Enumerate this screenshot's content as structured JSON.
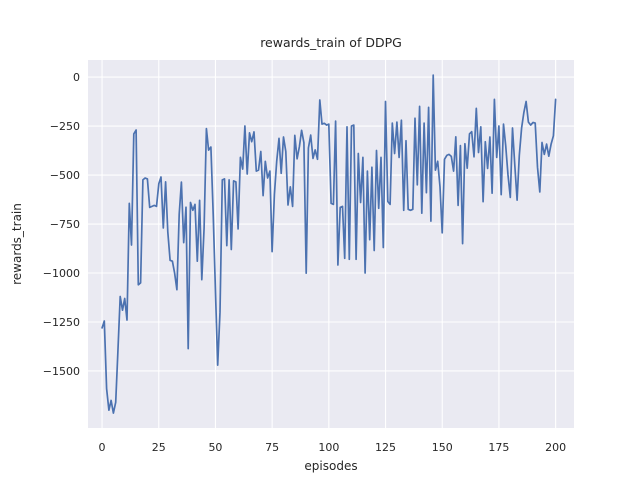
{
  "chart_data": {
    "type": "line",
    "title": "rewards_train of DDPG",
    "xlabel": "episodes",
    "ylabel": "rewards_train",
    "x": {
      "start": 0,
      "end": 200,
      "step": 1
    },
    "x_ticks": [
      0,
      25,
      50,
      75,
      100,
      125,
      150,
      175,
      200
    ],
    "y_ticks": [
      0,
      -250,
      -500,
      -750,
      -1000,
      -1250,
      -1500
    ],
    "xlim": [
      -6.2,
      208.1
    ],
    "ylim": [
      -1791,
      87
    ],
    "grid": true,
    "legend": null,
    "style": {
      "line_color": "#4c72b0",
      "line_width": 1.7,
      "axes_background": "#eaeaf2",
      "grid_color": "#ffffff",
      "text_color": "#262626",
      "figure_background": "#ffffff"
    },
    "series": [
      {
        "name": "rewards_train",
        "values": [
          -1280,
          -1245,
          -1590,
          -1700,
          -1650,
          -1715,
          -1660,
          -1400,
          -1120,
          -1190,
          -1130,
          -1240,
          -645,
          -857,
          -290,
          -270,
          -1060,
          -1050,
          -525,
          -515,
          -520,
          -665,
          -660,
          -655,
          -660,
          -545,
          -510,
          -770,
          -535,
          -790,
          -935,
          -940,
          -1000,
          -1085,
          -700,
          -536,
          -845,
          -664,
          -1386,
          -640,
          -680,
          -650,
          -940,
          -629,
          -1034,
          -770,
          -263,
          -373,
          -357,
          -700,
          -1100,
          -1470,
          -1200,
          -525,
          -520,
          -860,
          -525,
          -880,
          -530,
          -535,
          -775,
          -410,
          -470,
          -250,
          -495,
          -285,
          -330,
          -280,
          -480,
          -475,
          -380,
          -605,
          -430,
          -515,
          -480,
          -891,
          -600,
          -430,
          -313,
          -491,
          -306,
          -380,
          -653,
          -560,
          -660,
          -298,
          -417,
          -355,
          -272,
          -335,
          -1001,
          -362,
          -296,
          -415,
          -372,
          -420,
          -117,
          -240,
          -236,
          -245,
          -240,
          -645,
          -650,
          -225,
          -959,
          -665,
          -660,
          -925,
          -254,
          -930,
          -250,
          -245,
          -930,
          -390,
          -640,
          -410,
          -1000,
          -480,
          -830,
          -460,
          -885,
          -375,
          -670,
          -410,
          -870,
          -125,
          -635,
          -650,
          -235,
          -390,
          -230,
          -410,
          -220,
          -680,
          -325,
          -675,
          -680,
          -675,
          -210,
          -550,
          -150,
          -695,
          -235,
          -590,
          -155,
          -735,
          10,
          -475,
          -430,
          -560,
          -795,
          -420,
          -400,
          -395,
          -405,
          -480,
          -305,
          -655,
          -350,
          -850,
          -340,
          -465,
          -290,
          -279,
          -407,
          -160,
          -385,
          -254,
          -636,
          -330,
          -466,
          -306,
          -593,
          -114,
          -410,
          -250,
          -600,
          -240,
          -350,
          -500,
          -614,
          -260,
          -450,
          -628,
          -400,
          -260,
          -180,
          -125,
          -230,
          -245,
          -232,
          -235,
          -460,
          -586,
          -334,
          -395,
          -342,
          -404,
          -342,
          -300,
          -114
        ]
      }
    ]
  }
}
